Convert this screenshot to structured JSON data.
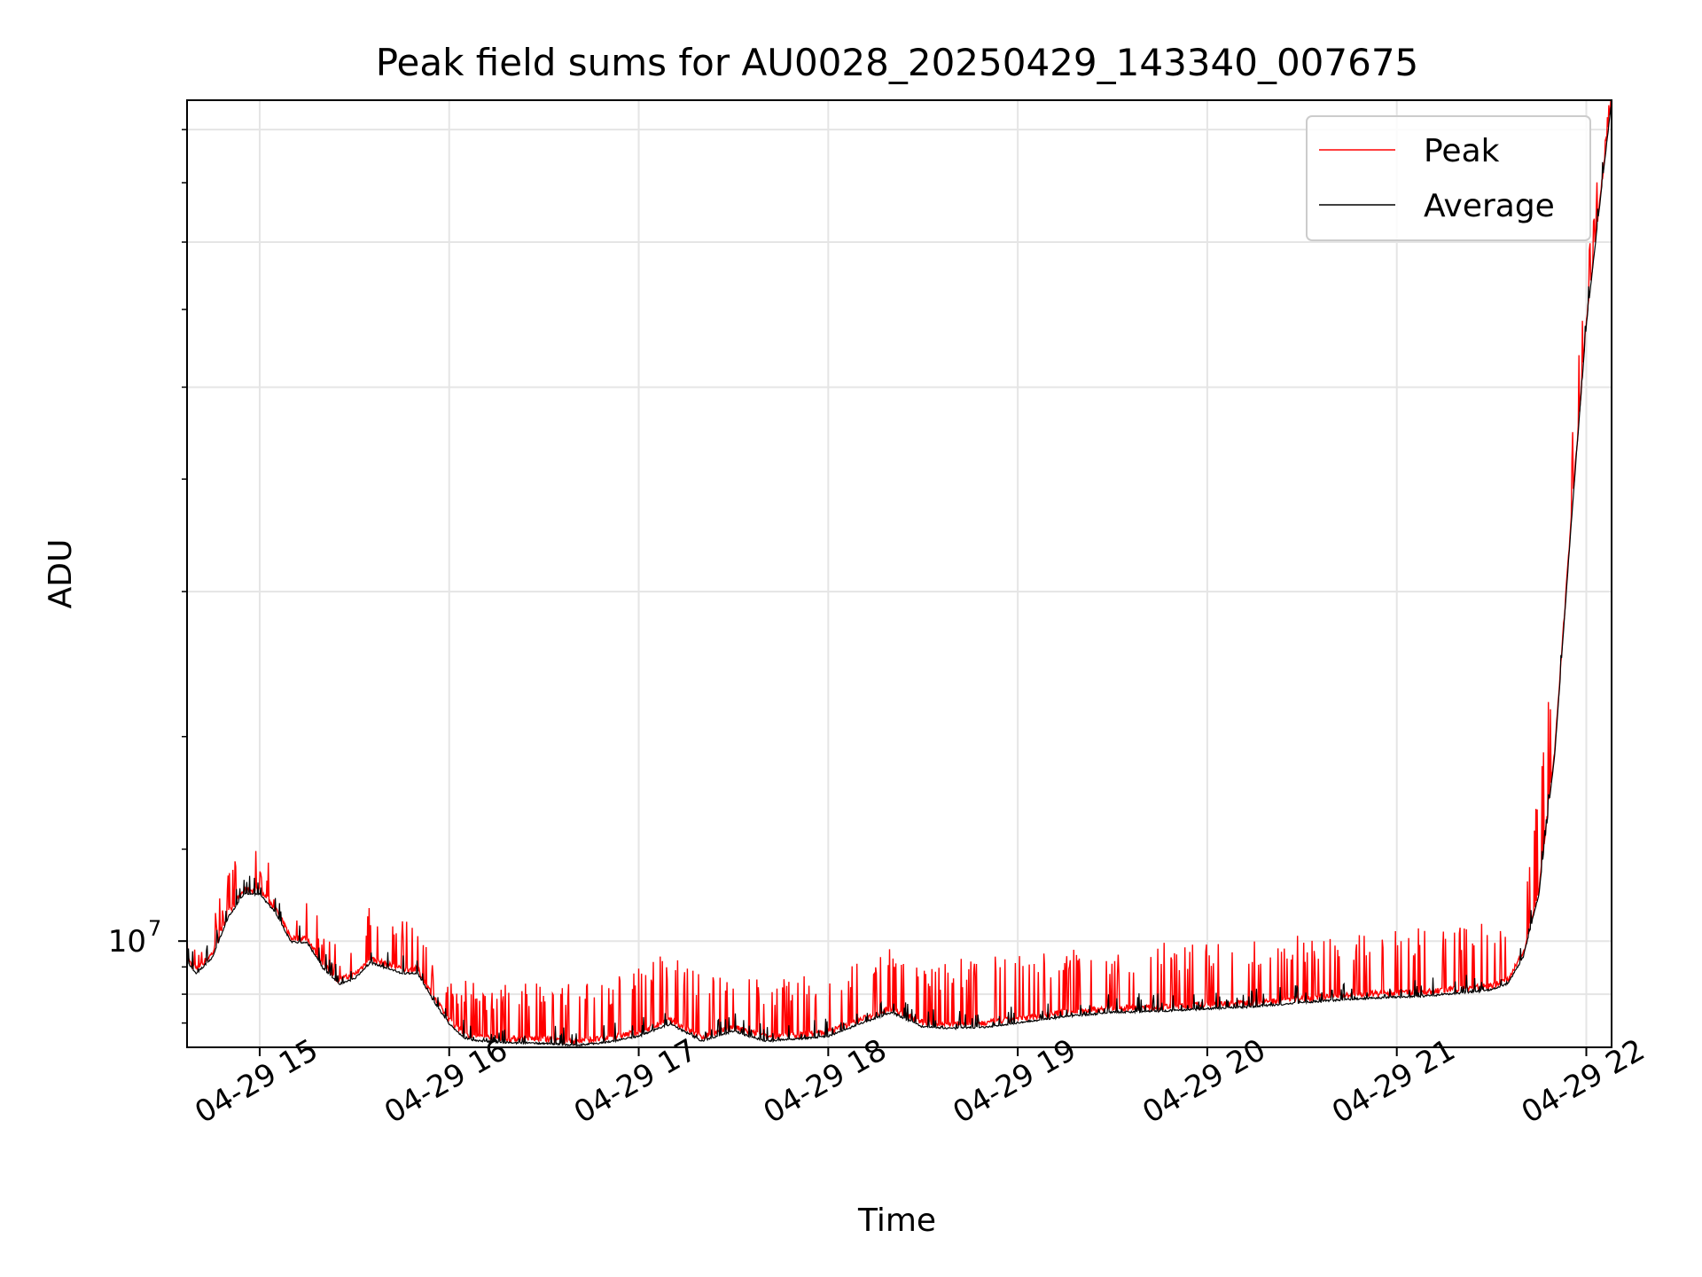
{
  "chart_data": {
    "type": "line",
    "title": "Peak field sums for AU0028_20250429_143340_007675",
    "xlabel": "Time",
    "ylabel": "ADU",
    "x_axis": {
      "kind": "time",
      "date": "2025-04-29",
      "range": [
        "14:37",
        "22:08"
      ],
      "tick_labels": [
        "04-29 15",
        "04-29 16",
        "04-29 17",
        "04-29 18",
        "04-29 19",
        "04-29 20",
        "04-29 21",
        "04-29 22"
      ],
      "tick_rotation_deg": 30
    },
    "y_axis": {
      "scale": "log",
      "range": [
        8100000,
        53000000
      ],
      "tick_label": "10",
      "tick_label_exponent": "7"
    },
    "grid": true,
    "legend": {
      "placement": "top-right",
      "entries": [
        "Peak",
        "Average"
      ]
    },
    "colors": {
      "Peak": "#ff0000",
      "Average": "#000000",
      "grid": "#e5e5e5"
    },
    "x": [
      "14:37",
      "14:40",
      "14:45",
      "14:50",
      "14:55",
      "15:00",
      "15:05",
      "15:10",
      "15:15",
      "15:20",
      "15:25",
      "15:30",
      "15:35",
      "15:40",
      "15:45",
      "15:50",
      "15:55",
      "16:00",
      "16:05",
      "16:10",
      "16:15",
      "16:20",
      "16:30",
      "16:40",
      "16:50",
      "17:00",
      "17:10",
      "17:20",
      "17:30",
      "17:40",
      "17:50",
      "18:00",
      "18:10",
      "18:20",
      "18:30",
      "18:40",
      "18:50",
      "19:00",
      "19:15",
      "19:30",
      "19:45",
      "20:00",
      "20:15",
      "20:30",
      "20:45",
      "21:00",
      "21:10",
      "21:20",
      "21:30",
      "21:35",
      "21:40",
      "21:45",
      "21:50",
      "21:55",
      "22:00",
      "22:05",
      "22:08"
    ],
    "series": [
      {
        "name": "Average",
        "values": [
          9600000,
          9400000,
          9700000,
          10500000,
          11000000,
          11000000,
          10600000,
          10000000,
          10000000,
          9500000,
          9200000,
          9300000,
          9600000,
          9500000,
          9400000,
          9400000,
          8900000,
          8500000,
          8260000,
          8220000,
          8200000,
          8190000,
          8180000,
          8150000,
          8200000,
          8300000,
          8500000,
          8220000,
          8380000,
          8220000,
          8250000,
          8300000,
          8500000,
          8700000,
          8450000,
          8430000,
          8450000,
          8520000,
          8630000,
          8700000,
          8720000,
          8760000,
          8800000,
          8870000,
          8930000,
          8970000,
          8990000,
          9040000,
          9100000,
          9200000,
          9700000,
          11000000,
          14500000,
          22500000,
          34000000,
          45000000,
          53000000
        ]
      },
      {
        "name": "Peak",
        "values": [
          9700000,
          9500000,
          9900000,
          10800000,
          11500000,
          11400000,
          10800000,
          10300000,
          10400000,
          9700000,
          9400000,
          9700000,
          10200000,
          10000000,
          9900000,
          9900000,
          9200000,
          8800000,
          8750000,
          8700000,
          8730000,
          8730000,
          8750000,
          8700000,
          8730000,
          8950000,
          9300000,
          8850000,
          8980000,
          8780000,
          8820000,
          8850000,
          9100000,
          9500000,
          9050000,
          9100000,
          9150000,
          9200000,
          9300000,
          9350000,
          9400000,
          9450000,
          9500000,
          9550000,
          9600000,
          9650000,
          9700000,
          9750000,
          9800000,
          9900000,
          10700000,
          12800000,
          17000000,
          25000000,
          36000000,
          46000000,
          53000000
        ]
      }
    ]
  }
}
